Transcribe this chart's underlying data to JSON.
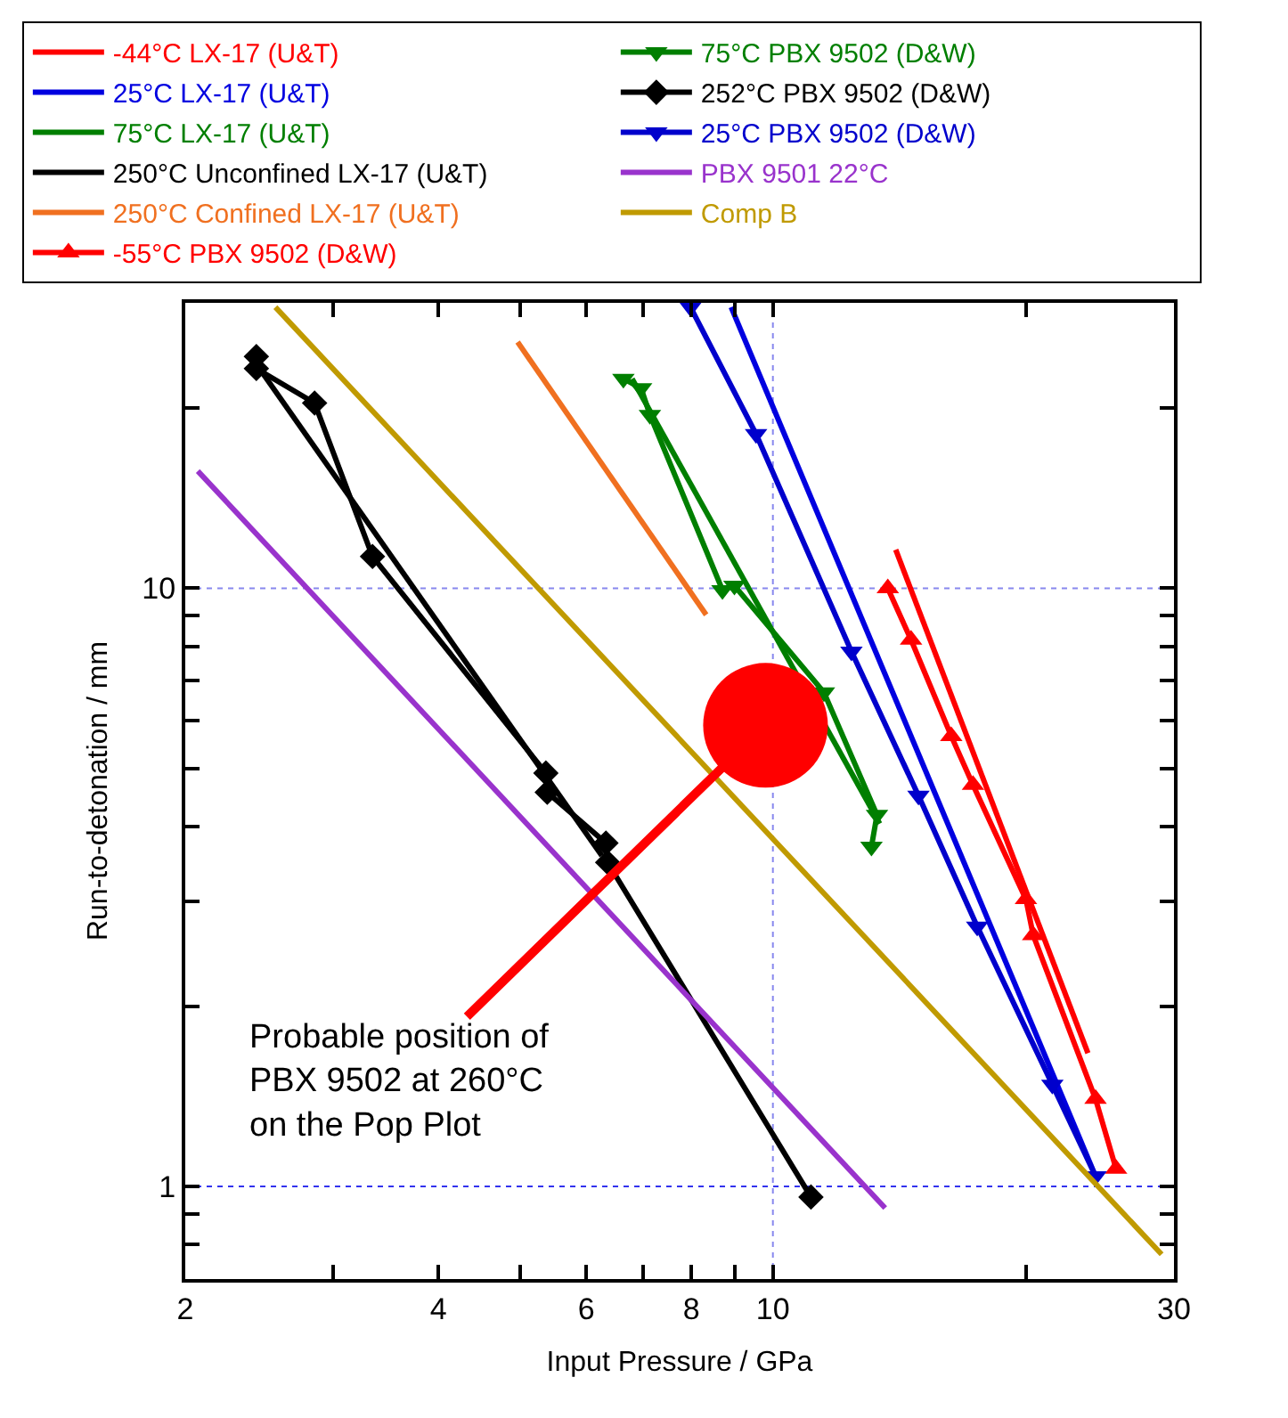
{
  "chart_data": {
    "type": "line",
    "xlabel": "Input Pressure / GPa",
    "ylabel": "Run-to-detonation / mm",
    "log": "xy",
    "xlim": [
      2,
      30
    ],
    "ylim": [
      0.7,
      30
    ],
    "xticks": [
      2,
      {
        "value": 3,
        "label": null
      },
      4,
      {
        "value": 5,
        "label": null
      },
      6,
      {
        "value": 7,
        "label": null
      },
      8,
      {
        "value": 9,
        "label": null
      },
      10,
      {
        "value": 20,
        "label": null
      },
      30
    ],
    "yticks": [
      {
        "value": 0.7,
        "label": null
      },
      {
        "value": 0.8,
        "label": null
      },
      {
        "value": 0.9,
        "label": null
      },
      1,
      {
        "value": 2,
        "label": null
      },
      {
        "value": 3,
        "label": null
      },
      {
        "value": 4,
        "label": null
      },
      {
        "value": 5,
        "label": null
      },
      {
        "value": 6,
        "label": null
      },
      {
        "value": 7,
        "label": null
      },
      {
        "value": 8,
        "label": null
      },
      {
        "value": 9,
        "label": null
      },
      10,
      {
        "value": 20,
        "label": null
      }
    ],
    "ref_lines": [
      {
        "axis": "x",
        "value": 10,
        "color": "#8888ee",
        "line_style": "dotted"
      },
      {
        "axis": "y",
        "value": 10,
        "color": "#8888ee",
        "line_style": "dotted"
      },
      {
        "axis": "y",
        "value": 1,
        "color": "#3333ee",
        "line_style": "dotted"
      }
    ],
    "legend": "top",
    "line_style": "solid",
    "series": [
      {
        "name": "-44°C LX-17 (U&T)",
        "color": "#ff0000",
        "marker": "none",
        "x": [
          14.0,
          23.7
        ],
        "values": [
          11.6,
          1.67
        ]
      },
      {
        "name": "25°C LX-17 (U&T)",
        "color": "#0000e0",
        "marker": "none",
        "x": [
          8.92,
          24.2
        ],
        "values": [
          29.5,
          1.04
        ]
      },
      {
        "name": "75°C LX-17 (U&T)",
        "color": "#007f00",
        "marker": "none",
        "x": [
          6.8,
          13.4
        ],
        "values": [
          22.4,
          4.04
        ]
      },
      {
        "name": "250°C Unconfined LX-17 (U&T)",
        "color": "#000000",
        "marker": "none",
        "x": [
          2.44,
          6.26
        ],
        "values": [
          23.5,
          3.57
        ]
      },
      {
        "name": "250°C Confined LX-17 (U&T)",
        "color": "#f07020",
        "marker": "none",
        "x": [
          4.97,
          8.33
        ],
        "values": [
          25.8,
          9.03
        ]
      },
      {
        "name": "-55°C PBX 9502 (D&W)",
        "color": "#ff0000",
        "marker": "triangle",
        "x": [
          13.7,
          14.6,
          16.3,
          17.3,
          20.0,
          20.4,
          24.2,
          25.6
        ],
        "values": [
          10,
          8.2,
          5.66,
          4.69,
          3.02,
          2.63,
          1.4,
          1.07
        ]
      },
      {
        "name": "75°C PBX 9502 (D&W)",
        "color": "#007f00",
        "marker": "triangle-down",
        "x": [
          6.64,
          6.97,
          7.14,
          8.71,
          9.0,
          11.5,
          13.3,
          13.1
        ],
        "values": [
          22.4,
          21.6,
          19.5,
          9.93,
          10.1,
          6.7,
          4.18,
          3.7
        ]
      },
      {
        "name": "252°C PBX 9502 (D&W)",
        "color": "#000000",
        "marker": "diamond",
        "x": [
          2.43,
          2.43,
          2.85,
          3.34,
          5.37,
          5.39,
          6.33,
          6.36,
          11.1
        ],
        "values": [
          24.4,
          23.3,
          20.4,
          11.3,
          4.91,
          4.56,
          3.75,
          3.48,
          0.96
        ]
      },
      {
        "name": "25°C PBX 9502 (D&W)",
        "color": "#0000cc",
        "marker": "triangle-down",
        "x": [
          7.98,
          9.55,
          12.4,
          14.9,
          17.5,
          21.5,
          24.2
        ],
        "values": [
          29.5,
          18.1,
          7.84,
          4.5,
          2.72,
          1.48,
          1.04
        ]
      },
      {
        "name": "PBX 9501 22°C",
        "color": "#9933cc",
        "marker": "none",
        "x": [
          2.07,
          13.6
        ],
        "values": [
          15.7,
          0.92
        ]
      },
      {
        "name": "Comp B",
        "color": "#c09a00",
        "marker": "none",
        "x": [
          2.56,
          29.0
        ],
        "values": [
          29.5,
          0.77
        ]
      },
      {
        "type": "scatter",
        "color": "#ff0000",
        "marker": "circle",
        "x": [
          9.8
        ],
        "values": [
          5.9
        ]
      }
    ],
    "annotations": [
      {
        "text": "Probable position of\nPBX 9502 at 260°C\non the Pop Plot",
        "x": 9.8,
        "y": 5.9
      }
    ]
  }
}
